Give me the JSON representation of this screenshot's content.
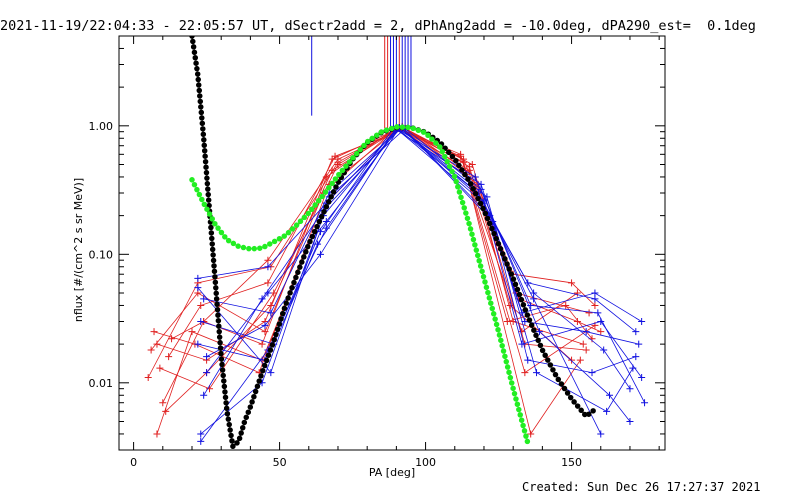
{
  "title": "2021-11-19/22:04:33 - 22:05:57 UT, dSectr2add = 2, dPhAng2add = -10.0deg, dPA290_est=  0.1deg",
  "footer": "Created: Sun Dec 26 17:27:37 2021",
  "chart_data": {
    "type": "scatter",
    "xlabel": "PA [deg]",
    "ylabel": "nflux [#/(cm^2 s sr MeV)]",
    "xlim": [
      -5,
      182
    ],
    "ylim": [
      0.003,
      5
    ],
    "yscale": "log",
    "xticks": [
      0,
      50,
      100,
      150
    ],
    "xtick_labels": [
      "0",
      "50",
      "100",
      "150"
    ],
    "yticks": [
      0.01,
      0.1,
      1.0
    ],
    "ytick_labels": [
      "0.01",
      "0.10",
      "1.00"
    ],
    "colors": {
      "red": "#e02020",
      "blue": "#1010e0",
      "black": "#000000",
      "green": "#22ee22"
    },
    "vertical_lines": [
      {
        "x": 61,
        "y_from": 1.2,
        "color": "#1010e0"
      },
      {
        "x": 86,
        "y_from": 0.96,
        "color": "#e02020"
      },
      {
        "x": 87,
        "y_from": 0.96,
        "color": "#e02020"
      },
      {
        "x": 88,
        "y_from": 0.96,
        "color": "#1010e0"
      },
      {
        "x": 89,
        "y_from": 0.96,
        "color": "#1010e0"
      },
      {
        "x": 90,
        "y_from": 0.96,
        "color": "#1010e0"
      },
      {
        "x": 91,
        "y_from": 0.96,
        "color": "#e02020"
      },
      {
        "x": 92,
        "y_from": 0.96,
        "color": "#1010e0"
      },
      {
        "x": 93,
        "y_from": 0.96,
        "color": "#1010e0"
      },
      {
        "x": 94,
        "y_from": 0.96,
        "color": "#1010e0"
      },
      {
        "x": 95,
        "y_from": 0.96,
        "color": "#1010e0"
      }
    ],
    "series": [
      {
        "color": "red",
        "x": [
          8,
          25,
          45,
          68,
          92,
          113,
          132,
          152,
          160
        ],
        "y": [
          0.02,
          0.015,
          0.03,
          0.55,
          0.98,
          0.55,
          0.045,
          0.03,
          0.025
        ]
      },
      {
        "color": "red",
        "x": [
          5,
          22,
          47,
          70,
          91,
          115,
          130,
          150,
          158
        ],
        "y": [
          0.011,
          0.06,
          0.08,
          0.52,
          0.96,
          0.45,
          0.07,
          0.06,
          0.04
        ]
      },
      {
        "color": "red",
        "x": [
          10,
          24,
          44,
          66,
          90,
          112,
          128,
          148,
          157
        ],
        "y": [
          0.007,
          0.03,
          0.02,
          0.4,
          0.97,
          0.6,
          0.03,
          0.04,
          0.022
        ]
      },
      {
        "color": "red",
        "x": [
          12,
          23,
          46,
          69,
          93,
          116,
          134,
          155
        ],
        "y": [
          0.016,
          0.04,
          0.06,
          0.58,
          0.95,
          0.5,
          0.02,
          0.018
        ]
      },
      {
        "color": "red",
        "x": [
          7,
          21,
          43,
          67,
          92,
          114,
          136,
          153
        ],
        "y": [
          0.025,
          0.02,
          0.012,
          0.35,
          0.99,
          0.42,
          0.004,
          0.015
        ]
      },
      {
        "color": "red",
        "x": [
          9,
          26,
          48,
          70,
          91,
          118,
          131,
          156
        ],
        "y": [
          0.013,
          0.009,
          0.05,
          0.5,
          0.97,
          0.35,
          0.05,
          0.035
        ]
      },
      {
        "color": "red",
        "x": [
          6,
          22,
          45,
          65,
          90,
          112,
          133,
          152
        ],
        "y": [
          0.018,
          0.05,
          0.025,
          0.3,
          0.96,
          0.58,
          0.025,
          0.05
        ]
      },
      {
        "color": "red",
        "x": [
          11,
          25,
          47,
          68,
          92,
          115,
          129,
          150
        ],
        "y": [
          0.006,
          0.012,
          0.04,
          0.45,
          0.98,
          0.48,
          0.04,
          0.015
        ]
      },
      {
        "color": "red",
        "x": [
          8,
          20,
          44,
          66,
          91,
          113,
          134,
          158
        ],
        "y": [
          0.004,
          0.025,
          0.015,
          0.25,
          0.97,
          0.52,
          0.012,
          0.028
        ]
      },
      {
        "color": "red",
        "x": [
          13,
          24,
          46,
          70,
          93,
          117,
          130,
          154
        ],
        "y": [
          0.022,
          0.03,
          0.09,
          0.55,
          0.96,
          0.4,
          0.03,
          0.02
        ]
      },
      {
        "color": "blue",
        "x": [
          22,
          46,
          66,
          91,
          118,
          135,
          158,
          172
        ],
        "y": [
          0.065,
          0.08,
          0.25,
          0.97,
          0.3,
          0.06,
          0.045,
          0.025
        ]
      },
      {
        "color": "blue",
        "x": [
          23,
          44,
          65,
          90,
          120,
          133,
          160,
          174
        ],
        "y": [
          0.004,
          0.01,
          0.2,
          0.95,
          0.25,
          0.02,
          0.03,
          0.011
        ]
      },
      {
        "color": "blue",
        "x": [
          24,
          47,
          67,
          92,
          122,
          137,
          161,
          170
        ],
        "y": [
          0.045,
          0.035,
          0.3,
          0.98,
          0.2,
          0.05,
          0.018,
          0.009
        ]
      },
      {
        "color": "blue",
        "x": [
          22,
          45,
          64,
          89,
          119,
          134,
          155,
          173
        ],
        "y": [
          0.02,
          0.015,
          0.15,
          0.96,
          0.35,
          0.03,
          0.025,
          0.02
        ]
      },
      {
        "color": "blue",
        "x": [
          25,
          46,
          66,
          91,
          121,
          138,
          162,
          171
        ],
        "y": [
          0.012,
          0.05,
          0.18,
          0.97,
          0.28,
          0.012,
          0.006,
          0.013
        ]
      },
      {
        "color": "blue",
        "x": [
          23,
          48,
          63,
          90,
          117,
          136,
          159,
          175
        ],
        "y": [
          0.03,
          0.02,
          0.12,
          0.96,
          0.4,
          0.04,
          0.035,
          0.007
        ]
      },
      {
        "color": "blue",
        "x": [
          24,
          44,
          65,
          92,
          123,
          135,
          157,
          172
        ],
        "y": [
          0.008,
          0.045,
          0.22,
          0.98,
          0.18,
          0.015,
          0.012,
          0.016
        ]
      },
      {
        "color": "blue",
        "x": [
          22,
          47,
          67,
          93,
          119,
          139,
          163,
          170
        ],
        "y": [
          0.055,
          0.012,
          0.28,
          0.95,
          0.32,
          0.025,
          0.008,
          0.005
        ]
      },
      {
        "color": "blue",
        "x": [
          25,
          45,
          64,
          91,
          120,
          133,
          158,
          174
        ],
        "y": [
          0.016,
          0.028,
          0.1,
          0.97,
          0.26,
          0.035,
          0.05,
          0.03
        ]
      },
      {
        "color": "blue",
        "x": [
          23,
          46,
          66,
          90,
          118,
          137,
          160
        ],
        "y": [
          0.0035,
          0.018,
          0.16,
          0.96,
          0.3,
          0.045,
          0.004
        ]
      }
    ],
    "fit_curves": [
      {
        "name": "",
        "color": "black",
        "x": [
          20,
          22,
          24,
          26,
          28,
          30,
          32,
          34,
          36,
          38,
          40,
          44,
          48,
          52,
          56,
          60,
          65,
          70,
          75,
          80,
          85,
          90,
          95,
          100,
          105,
          110,
          115,
          120,
          125,
          130,
          135,
          140,
          145,
          150,
          155,
          158
        ],
        "y": [
          5,
          2.5,
          0.8,
          0.22,
          0.06,
          0.016,
          0.006,
          0.0032,
          0.0035,
          0.005,
          0.0065,
          0.012,
          0.021,
          0.04,
          0.07,
          0.12,
          0.21,
          0.36,
          0.55,
          0.74,
          0.89,
          0.97,
          0.97,
          0.89,
          0.74,
          0.55,
          0.37,
          0.22,
          0.12,
          0.065,
          0.033,
          0.018,
          0.011,
          0.0075,
          0.0055,
          0.0062
        ]
      },
      {
        "name": "",
        "color": "green",
        "x": [
          20,
          24,
          28,
          32,
          36,
          40,
          44,
          48,
          52,
          56,
          60,
          65,
          70,
          75,
          80,
          85,
          90,
          95,
          100,
          105,
          110,
          115,
          120,
          125,
          130,
          135
        ],
        "y": [
          0.38,
          0.25,
          0.17,
          0.13,
          0.115,
          0.11,
          0.112,
          0.125,
          0.14,
          0.17,
          0.21,
          0.29,
          0.41,
          0.56,
          0.75,
          0.9,
          0.98,
          0.97,
          0.88,
          0.68,
          0.4,
          0.17,
          0.065,
          0.025,
          0.009,
          0.0034
        ]
      }
    ]
  }
}
